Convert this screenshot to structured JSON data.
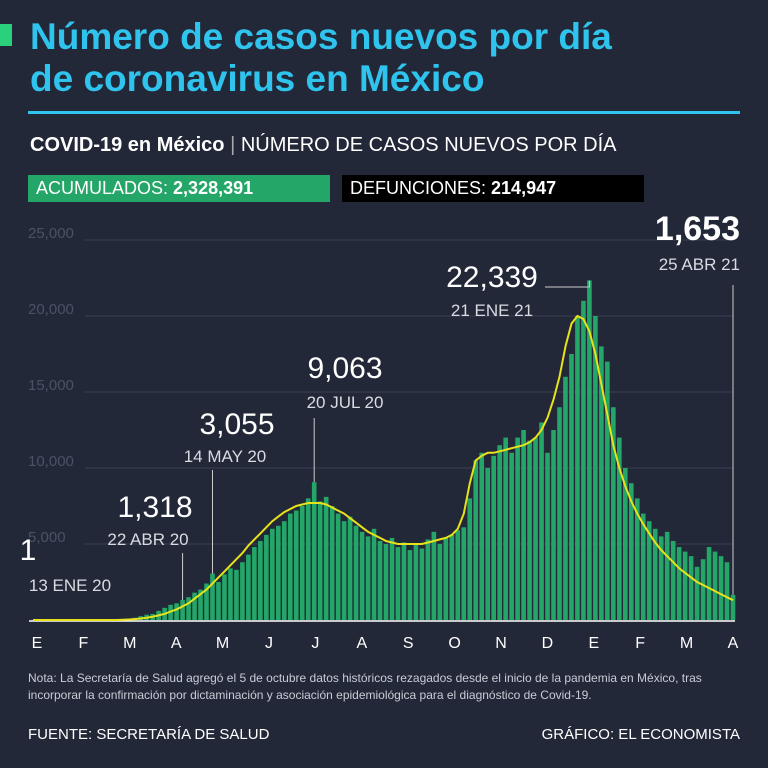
{
  "header": {
    "title_line1": "Número de casos nuevos por día",
    "title_line2": "de coronavirus en México",
    "subtitle_bold": "COVID-19 en México",
    "subtitle": "NÚMERO DE CASOS NUEVOS POR DÍA",
    "stat1_label": "ACUMULADOS:",
    "stat1_value": "2,328,391",
    "stat2_label": "DEFUNCIONES:",
    "stat2_value": "214,947"
  },
  "chart_data": {
    "type": "bar",
    "color": "#23a668",
    "months": [
      "E",
      "F",
      "M",
      "A",
      "M",
      "J",
      "J",
      "A",
      "S",
      "O",
      "N",
      "D",
      "E",
      "F",
      "M",
      "A"
    ],
    "categories": [
      null,
      null,
      null,
      null,
      null,
      null,
      null,
      null,
      null,
      null,
      null,
      null,
      null,
      null,
      null,
      null,
      null,
      null,
      null,
      null,
      null,
      null,
      null,
      null,
      null,
      null,
      null,
      null,
      null,
      null,
      null,
      null,
      null,
      null,
      null,
      null,
      null,
      null,
      null,
      null,
      null,
      null,
      null,
      null,
      null,
      null,
      null,
      null,
      null,
      null,
      null,
      null,
      null,
      null,
      null,
      null,
      null,
      null,
      null,
      null,
      null,
      null,
      null,
      null,
      null,
      null,
      null,
      null,
      null,
      null,
      null,
      null,
      null,
      null,
      null,
      null,
      null,
      null,
      null,
      null,
      null,
      null,
      null,
      null,
      null,
      null,
      null,
      null,
      null,
      null,
      null,
      null,
      null,
      null,
      null,
      null,
      null,
      null,
      null,
      null,
      null,
      null,
      null,
      null,
      null,
      null,
      null,
      null,
      null,
      null,
      null,
      null,
      null,
      null,
      null,
      null,
      null,
      null
    ],
    "values": [
      1,
      0,
      0,
      0,
      0,
      0,
      0,
      0,
      0,
      0,
      0,
      0,
      5,
      5,
      10,
      10,
      50,
      150,
      250,
      350,
      400,
      600,
      800,
      1000,
      1100,
      1318,
      1500,
      1800,
      2000,
      2400,
      3055,
      2500,
      3000,
      3400,
      3300,
      3800,
      4300,
      4800,
      5200,
      5600,
      6000,
      6200,
      6500,
      7000,
      7200,
      7500,
      8000,
      9063,
      7800,
      8100,
      7500,
      7000,
      6500,
      6800,
      6200,
      5800,
      5500,
      6000,
      5200,
      5000,
      5400,
      4800,
      5100,
      4600,
      5000,
      4700,
      5300,
      5800,
      5000,
      5400,
      5600,
      5900,
      6100,
      8000,
      10500,
      11000,
      10000,
      10800,
      11500,
      12000,
      11000,
      12000,
      12500,
      11800,
      12000,
      13000,
      11000,
      12500,
      14000,
      16000,
      17500,
      20000,
      21000,
      22339,
      20000,
      18000,
      17000,
      14000,
      12000,
      10000,
      9000,
      8000,
      7000,
      6500,
      6000,
      5500,
      5800,
      5200,
      4800,
      4500,
      4200,
      3500,
      4000,
      4800,
      4500,
      4200,
      3800,
      1653
    ],
    "trend": {
      "color": "#e8e21a",
      "values": [
        0,
        0,
        0,
        0,
        0,
        0,
        0,
        0,
        0,
        0,
        0,
        0,
        0,
        0,
        0,
        10,
        30,
        60,
        100,
        150,
        220,
        300,
        400,
        550,
        700,
        900,
        1100,
        1400,
        1700,
        2000,
        2400,
        2800,
        3200,
        3600,
        4000,
        4400,
        4900,
        5300,
        5700,
        6100,
        6500,
        6800,
        7100,
        7300,
        7500,
        7600,
        7700,
        7700,
        7700,
        7600,
        7400,
        7200,
        7000,
        6700,
        6400,
        6100,
        5800,
        5600,
        5400,
        5200,
        5100,
        5000,
        5000,
        5000,
        5000,
        5000,
        5100,
        5200,
        5300,
        5400,
        5600,
        6000,
        7000,
        9000,
        10500,
        10800,
        11000,
        11000,
        11100,
        11200,
        11300,
        11400,
        11500,
        11700,
        12000,
        12500,
        13300,
        14500,
        16000,
        18000,
        19500,
        20000,
        19800,
        19000,
        17500,
        15500,
        13500,
        11500,
        10000,
        8800,
        7800,
        7000,
        6300,
        5700,
        5100,
        4600,
        4200,
        3800,
        3400,
        3100,
        2800,
        2500,
        2300,
        2100,
        1900,
        1700,
        1500,
        1300
      ]
    },
    "ylim": [
      0,
      25000
    ],
    "yticks": [
      {
        "value": 5000,
        "label": "5,000"
      },
      {
        "value": 10000,
        "label": "10,000"
      },
      {
        "value": 15000,
        "label": "15,000"
      },
      {
        "value": 20000,
        "label": "20,000"
      },
      {
        "value": 25000,
        "label": "25,000"
      }
    ],
    "grid": true,
    "annotations": [
      {
        "value": 1,
        "label": "1",
        "date": "13 ENE 20"
      },
      {
        "value": 1318,
        "label": "1,318",
        "date": "22 ABR 20"
      },
      {
        "value": 3055,
        "label": "3,055",
        "date": "14 MAY 20"
      },
      {
        "value": 9063,
        "label": "9,063",
        "date": "20 JUL 20"
      },
      {
        "value": 22339,
        "label": "22,339",
        "date": "21 ENE 21"
      },
      {
        "value": 1653,
        "label": "1,653",
        "date": "25 ABR 21"
      }
    ]
  },
  "footer": {
    "note": "Nota: La Secretaría de Salud agregó el 5 de octubre datos históricos rezagados desde el inicio de la pandemia en México, tras incorporar la confirmación por dictaminación y asociación epidemiológica para el diagnóstico de Covid-19.",
    "source": "FUENTE: SECRETARÍA DE SALUD",
    "credit": "GRÁFICO: EL ECONOMISTA"
  }
}
